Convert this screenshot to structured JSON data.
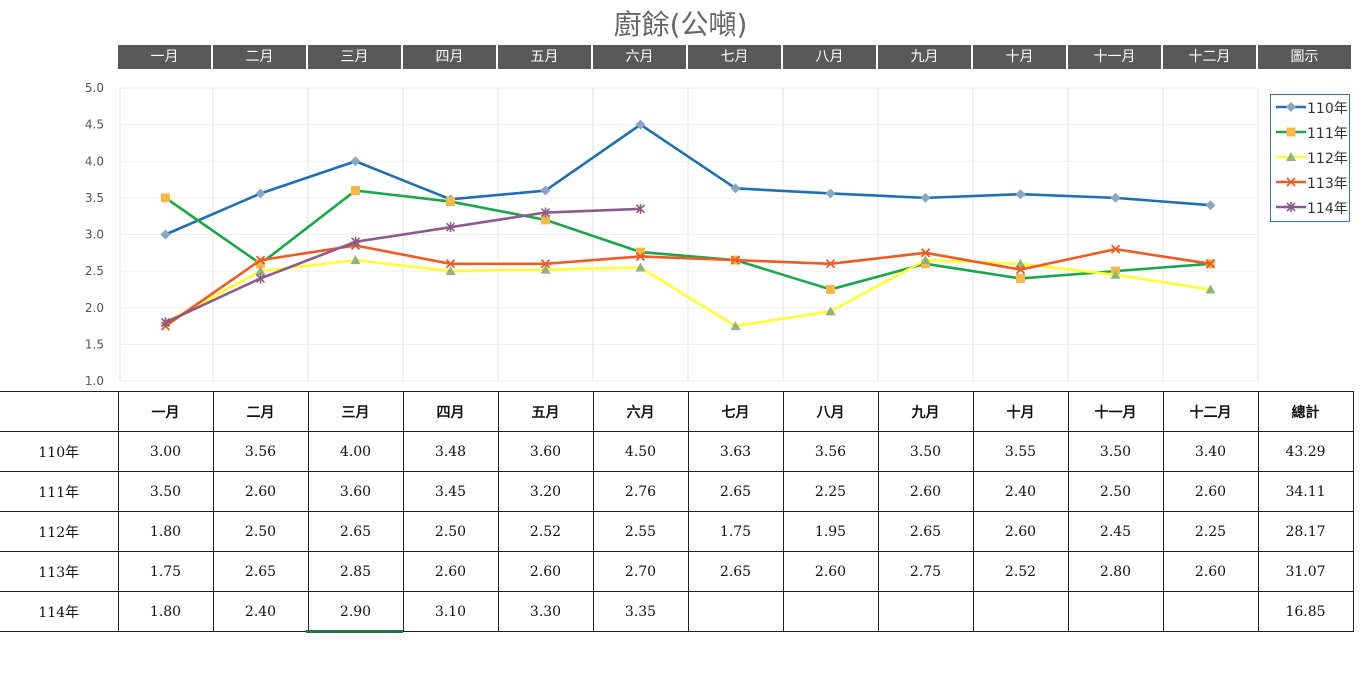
{
  "chart_data": {
    "type": "line",
    "title": "廚餘(公噸)",
    "categories": [
      "一月",
      "二月",
      "三月",
      "四月",
      "五月",
      "六月",
      "七月",
      "八月",
      "九月",
      "十月",
      "十一月",
      "十二月"
    ],
    "header_extra": "圖示",
    "ylim": [
      1.0,
      5.0
    ],
    "yticks": [
      "1.0",
      "1.5",
      "2.0",
      "2.5",
      "3.0",
      "3.5",
      "4.0",
      "4.5",
      "5.0"
    ],
    "grid": true,
    "legend_position": "right",
    "series": [
      {
        "name": "110年",
        "color": "#1f6fb5",
        "marker": "diamond",
        "marker_color": "#8aa6c1",
        "values": [
          3.0,
          3.56,
          4.0,
          3.48,
          3.6,
          4.5,
          3.63,
          3.56,
          3.5,
          3.55,
          3.5,
          3.4
        ]
      },
      {
        "name": "111年",
        "color": "#19a74a",
        "marker": "square",
        "marker_color": "#f7b84a",
        "values": [
          3.5,
          2.6,
          3.6,
          3.45,
          3.2,
          2.76,
          2.65,
          2.25,
          2.6,
          2.4,
          2.5,
          2.6
        ]
      },
      {
        "name": "112年",
        "color": "#ffff33",
        "marker": "triangle",
        "marker_color": "#8fb57c",
        "values": [
          1.8,
          2.5,
          2.65,
          2.5,
          2.52,
          2.55,
          1.75,
          1.95,
          2.65,
          2.6,
          2.45,
          2.25
        ]
      },
      {
        "name": "113年",
        "color": "#f05a23",
        "marker": "x",
        "marker_color": "#f05a23",
        "values": [
          1.75,
          2.65,
          2.85,
          2.6,
          2.6,
          2.7,
          2.65,
          2.6,
          2.75,
          2.52,
          2.8,
          2.6
        ]
      },
      {
        "name": "114年",
        "color": "#8e5a8c",
        "marker": "star",
        "marker_color": "#8e5a8c",
        "values": [
          1.8,
          2.4,
          2.9,
          3.1,
          3.3,
          3.35,
          null,
          null,
          null,
          null,
          null,
          null
        ]
      }
    ]
  },
  "table": {
    "total_label": "總計",
    "rows": [
      {
        "label": "110年",
        "cells": [
          "3.00",
          "3.56",
          "4.00",
          "3.48",
          "3.60",
          "4.50",
          "3.63",
          "3.56",
          "3.50",
          "3.55",
          "3.50",
          "3.40"
        ],
        "total": "43.29"
      },
      {
        "label": "111年",
        "cells": [
          "3.50",
          "2.60",
          "3.60",
          "3.45",
          "3.20",
          "2.76",
          "2.65",
          "2.25",
          "2.60",
          "2.40",
          "2.50",
          "2.60"
        ],
        "total": "34.11"
      },
      {
        "label": "112年",
        "cells": [
          "1.80",
          "2.50",
          "2.65",
          "2.50",
          "2.52",
          "2.55",
          "1.75",
          "1.95",
          "2.65",
          "2.60",
          "2.45",
          "2.25"
        ],
        "total": "28.17"
      },
      {
        "label": "113年",
        "cells": [
          "1.75",
          "2.65",
          "2.85",
          "2.60",
          "2.60",
          "2.70",
          "2.65",
          "2.60",
          "2.75",
          "2.52",
          "2.80",
          "2.60"
        ],
        "total": "31.07"
      },
      {
        "label": "114年",
        "cells": [
          "1.80",
          "2.40",
          "2.90",
          "3.10",
          "3.30",
          "3.35",
          "",
          "",
          "",
          "",
          "",
          ""
        ],
        "total": "16.85"
      }
    ]
  }
}
